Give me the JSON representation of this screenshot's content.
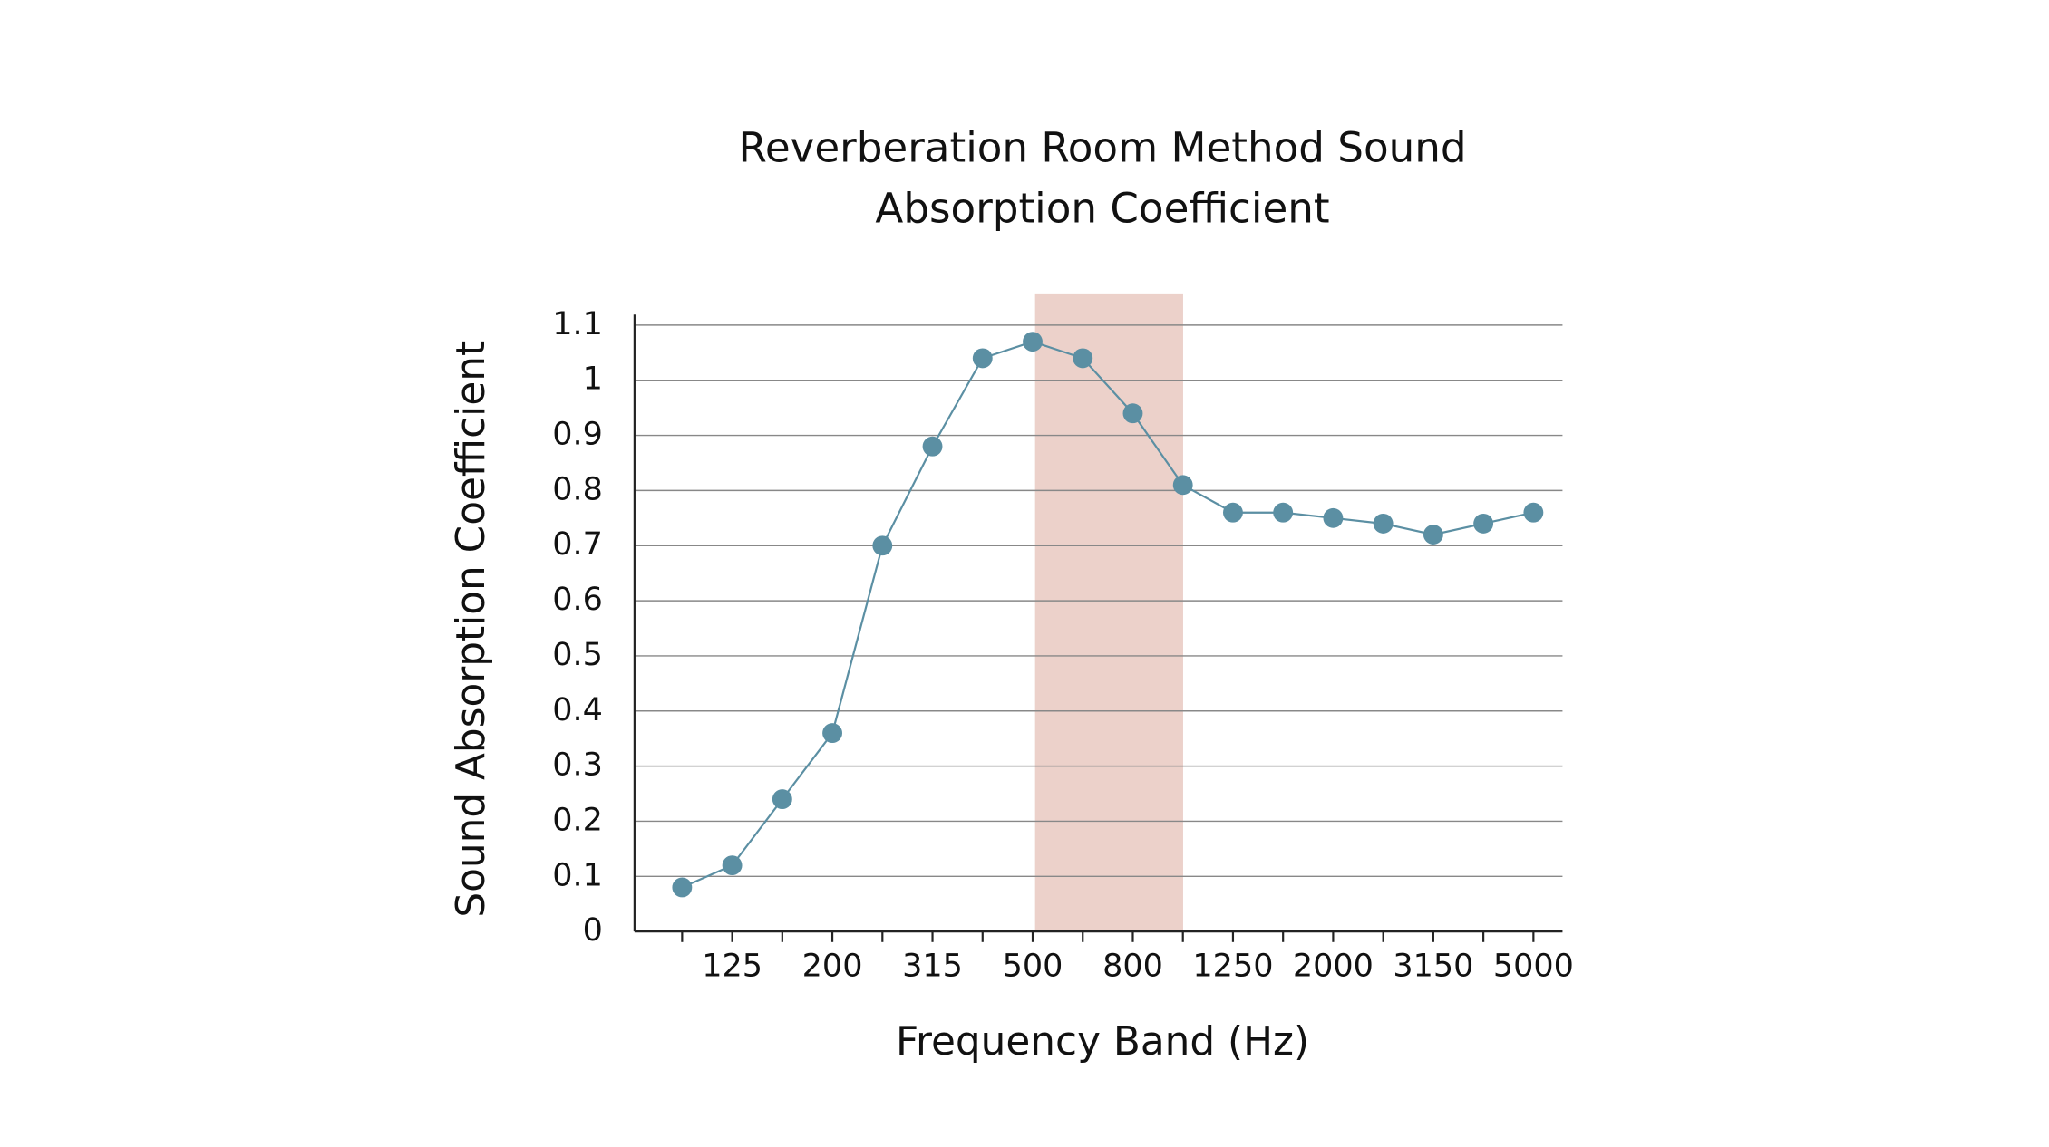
{
  "chart_data": {
    "type": "line",
    "title": [
      "Reverberation Room Method Sound",
      "Absorption Coefficient"
    ],
    "x_label": "Frequency Band (Hz)",
    "y_label": "Sound Absorption Coefficient",
    "categories": [
      null,
      "125",
      null,
      "200",
      null,
      "315",
      null,
      "500",
      null,
      "800",
      null,
      "1250",
      null,
      "2000",
      null,
      "3150",
      null,
      "5000"
    ],
    "values": [
      0.08,
      0.12,
      0.24,
      0.36,
      0.7,
      0.88,
      1.04,
      1.07,
      1.04,
      0.94,
      0.81,
      0.76,
      0.76,
      0.75,
      0.74,
      0.72,
      0.74,
      0.76
    ],
    "color": "#5b8fa3",
    "ylim": [
      0,
      1.1
    ],
    "yticks": [
      0,
      0.1,
      0.2,
      0.3,
      0.4,
      0.5,
      0.6,
      0.7,
      0.8,
      0.9,
      1,
      1.1
    ],
    "grid": true
  }
}
